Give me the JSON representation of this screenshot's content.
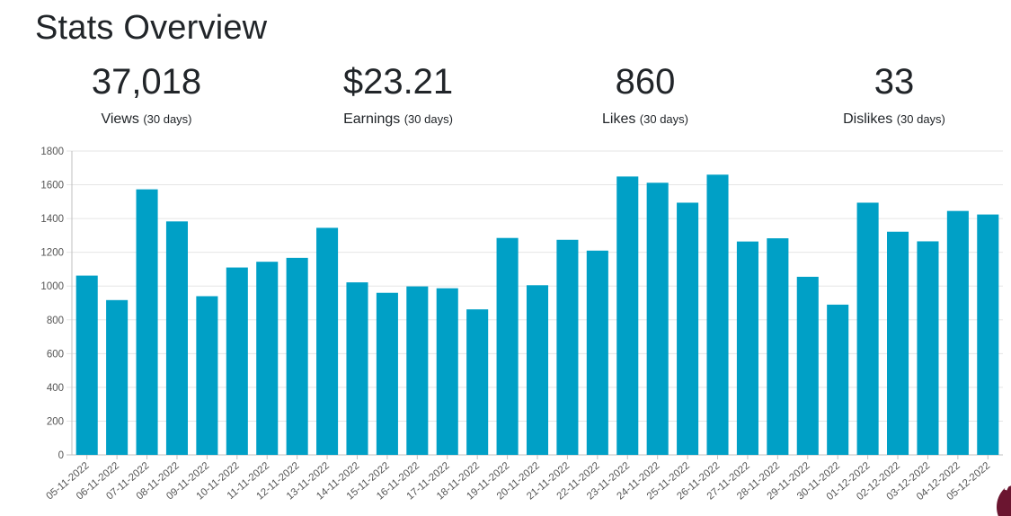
{
  "header": {
    "title": "Stats Overview"
  },
  "stats": [
    {
      "value": "37,018",
      "label": "Views",
      "period": "(30 days)"
    },
    {
      "value": "$23.21",
      "label": "Earnings",
      "period": "(30 days)"
    },
    {
      "value": "860",
      "label": "Likes",
      "period": "(30 days)"
    },
    {
      "value": "33",
      "label": "Dislikes",
      "period": "(30 days)"
    }
  ],
  "colors": {
    "bar": "#00a0c6",
    "grid": "#e5e5e5",
    "axis": "#bfbfbf"
  },
  "chart_data": {
    "type": "bar",
    "categories": [
      "05-11-2022",
      "06-11-2022",
      "07-11-2022",
      "08-11-2022",
      "09-11-2022",
      "10-11-2022",
      "11-11-2022",
      "12-11-2022",
      "13-11-2022",
      "14-11-2022",
      "15-11-2022",
      "16-11-2022",
      "17-11-2022",
      "18-11-2022",
      "19-11-2022",
      "20-11-2022",
      "21-11-2022",
      "22-11-2022",
      "23-11-2022",
      "24-11-2022",
      "25-11-2022",
      "26-11-2022",
      "27-11-2022",
      "28-11-2022",
      "29-11-2022",
      "30-11-2022",
      "01-12-2022",
      "02-12-2022",
      "03-12-2022",
      "04-12-2022",
      "05-12-2022"
    ],
    "values": [
      1062,
      917,
      1573,
      1383,
      940,
      1110,
      1144,
      1167,
      1345,
      1022,
      960,
      998,
      987,
      862,
      1285,
      1005,
      1274,
      1210,
      1649,
      1612,
      1494,
      1660,
      1264,
      1283,
      1055,
      890,
      1494,
      1322,
      1265,
      1445,
      1424
    ],
    "yticks": [
      0,
      200,
      400,
      600,
      800,
      1000,
      1200,
      1400,
      1600,
      1800
    ],
    "ylim": [
      0,
      1800
    ],
    "title": "",
    "xlabel": "",
    "ylabel": "",
    "grid": true
  }
}
